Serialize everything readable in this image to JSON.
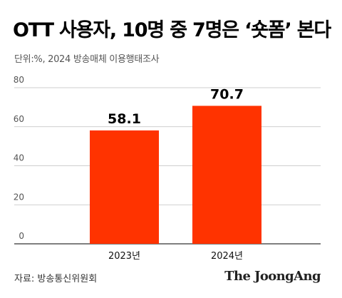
{
  "header": {
    "title": "OTT 사용자, 10명 중 7명은 ‘숏폼’ 본다",
    "subtitle": "단위:%, 2024 방송매체 이용행태조사"
  },
  "footer": {
    "source": "자료: 방송통신위원회",
    "logo": "The JoongAng"
  },
  "colors": {
    "bar": "#FF3300",
    "grid": "#bfbfbf",
    "baseline": "#333333",
    "tick_label": "#555555",
    "value_label": "#000000"
  },
  "chart_data": {
    "type": "bar",
    "categories": [
      "2023년",
      "2024년"
    ],
    "values": [
      58.1,
      70.7
    ],
    "value_labels": [
      "58.1",
      "70.7"
    ],
    "y_ticks": [
      0,
      20,
      40,
      60,
      80
    ],
    "ylim": [
      0,
      80
    ],
    "grid": true
  }
}
